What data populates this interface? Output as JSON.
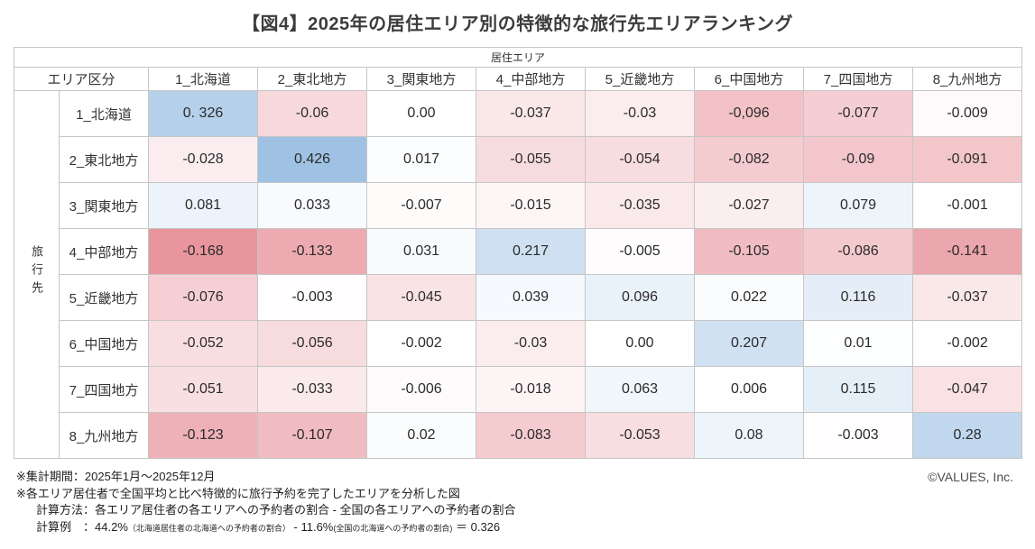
{
  "title": "【図4】2025年の居住エリア別の特徴的な旅行先エリアランキング",
  "table": {
    "top_header": "居住エリア",
    "corner_header": "エリア区分",
    "row_axis_label": "旅行先",
    "columns": [
      "1_北海道",
      "2_東北地方",
      "3_関東地方",
      "4_中部地方",
      "5_近畿地方",
      "6_中国地方",
      "7_四国地方",
      "8_九州地方"
    ],
    "rows": [
      {
        "label": "1_北海道",
        "values": [
          "0. 326",
          "-0.06",
          "0.00",
          "-0.037",
          "-0.03",
          "-0,096",
          "-0.077",
          "-0.009"
        ]
      },
      {
        "label": "2_東北地方",
        "values": [
          "-0.028",
          "0.426",
          "0.017",
          "-0.055",
          "-0.054",
          "-0.082",
          "-0.09",
          "-0.091"
        ]
      },
      {
        "label": "3_関東地方",
        "values": [
          "0.081",
          "0.033",
          "-0.007",
          "-0.015",
          "-0.035",
          "-0.027",
          "0.079",
          "-0.001"
        ]
      },
      {
        "label": "4_中部地方",
        "values": [
          "-0.168",
          "-0.133",
          "0.031",
          "0.217",
          "-0.005",
          "-0.105",
          "-0.086",
          "-0.141"
        ]
      },
      {
        "label": "5_近畿地方",
        "values": [
          "-0.076",
          "-0.003",
          "-0.045",
          "0.039",
          "0.096",
          "0.022",
          "0.116",
          "-0.037"
        ]
      },
      {
        "label": "6_中国地方",
        "values": [
          "-0.052",
          "-0.056",
          "-0.002",
          "-0.03",
          "0.00",
          "0.207",
          "0.01",
          "-0.002"
        ]
      },
      {
        "label": "7_四国地方",
        "values": [
          "-0.051",
          "-0.033",
          "-0.006",
          "-0.018",
          "0.063",
          "0.006",
          "0.115",
          "-0.047"
        ]
      },
      {
        "label": "8_九州地方",
        "values": [
          "-0.123",
          "-0.107",
          "0.02",
          "-0.083",
          "-0.053",
          "0.08",
          "-0.003",
          "0.28"
        ]
      }
    ]
  },
  "color_scale": {
    "positive_color": "#9fc2e4",
    "negative_color": "#e8959d",
    "neutral_color": "#ffffff",
    "max_value": 0.426,
    "min_value": -0.168
  },
  "footer": {
    "line1": "※集計期間：2025年1月～2025年12月",
    "line2": "※各エリア居住者で全国平均と比べ特徴的に旅行予約を完了したエリアを分析した図",
    "line3": "計算方法：各エリア居住者の各エリアへの予約者の割合 - 全国の各エリアへの予約者の割合",
    "line4_label": "計算例　：",
    "line4_value1": "44.2%",
    "line4_note1": "（北海道居住者の北海道への予約者の割合）",
    "line4_operator": " - ",
    "line4_value2": "11.6%",
    "line4_note2": "(全国の北海道への予約者の割合)",
    "line4_result": " ＝ 0.326"
  },
  "copyright": "©VALUES, Inc.",
  "chart_data": {
    "type": "heatmap",
    "title": "【図4】2025年の居住エリア別の特徴的な旅行先エリアランキング",
    "x_axis_label": "居住エリア",
    "y_axis_label": "旅行先",
    "columns": [
      "1_北海道",
      "2_東北地方",
      "3_関東地方",
      "4_中部地方",
      "5_近畿地方",
      "6_中国地方",
      "7_四国地方",
      "8_九州地方"
    ],
    "rows": [
      "1_北海道",
      "2_東北地方",
      "3_関東地方",
      "4_中部地方",
      "5_近畿地方",
      "6_中国地方",
      "7_四国地方",
      "8_九州地方"
    ],
    "values": [
      [
        0.326,
        -0.06,
        0.0,
        -0.037,
        -0.03,
        -0.096,
        -0.077,
        -0.009
      ],
      [
        -0.028,
        0.426,
        0.017,
        -0.055,
        -0.054,
        -0.082,
        -0.09,
        -0.091
      ],
      [
        0.081,
        0.033,
        -0.007,
        -0.015,
        -0.035,
        -0.027,
        0.079,
        -0.001
      ],
      [
        -0.168,
        -0.133,
        0.031,
        0.217,
        -0.005,
        -0.105,
        -0.086,
        -0.141
      ],
      [
        -0.076,
        -0.003,
        -0.045,
        0.039,
        0.096,
        0.022,
        0.116,
        -0.037
      ],
      [
        -0.052,
        -0.056,
        -0.002,
        -0.03,
        0.0,
        0.207,
        0.01,
        -0.002
      ],
      [
        -0.051,
        -0.033,
        -0.006,
        -0.018,
        0.063,
        0.006,
        0.115,
        -0.047
      ],
      [
        -0.123,
        -0.107,
        0.02,
        -0.083,
        -0.053,
        0.08,
        -0.003,
        0.28
      ]
    ],
    "color_legend": "blue = positive (characteristic destination), red = negative, white = 0",
    "value_range": [
      -0.168,
      0.426
    ]
  }
}
